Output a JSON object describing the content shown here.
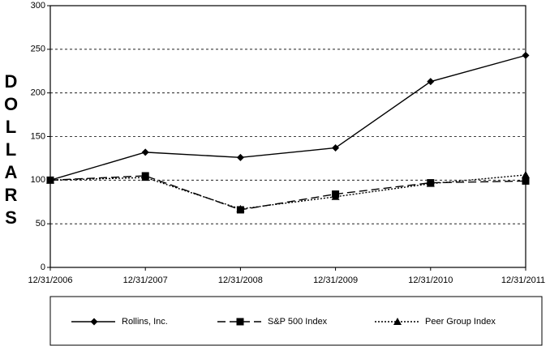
{
  "chart_data": {
    "type": "line",
    "y_label": "DOLLARS",
    "categories": [
      "12/31/2006",
      "12/31/2007",
      "12/31/2008",
      "12/31/2009",
      "12/31/2010",
      "12/31/2011"
    ],
    "series": [
      {
        "name": "Rollins, Inc.",
        "color": "#000000",
        "dash": "solid",
        "marker": "diamond",
        "values": [
          100,
          132,
          126,
          137,
          213,
          243
        ]
      },
      {
        "name": "S&P 500 Index",
        "color": "#000000",
        "dash": "dashed",
        "marker": "square",
        "values": [
          100,
          105,
          66,
          84,
          97,
          99
        ]
      },
      {
        "name": "Peer Group Index",
        "color": "#000000",
        "dash": "dotted",
        "marker": "triangle",
        "values": [
          100,
          103,
          67,
          81,
          96,
          106
        ]
      }
    ],
    "ylim": [
      0,
      300
    ],
    "yticks": [
      0,
      50,
      100,
      150,
      200,
      250,
      300
    ],
    "grid": true,
    "legend": "bottom"
  }
}
